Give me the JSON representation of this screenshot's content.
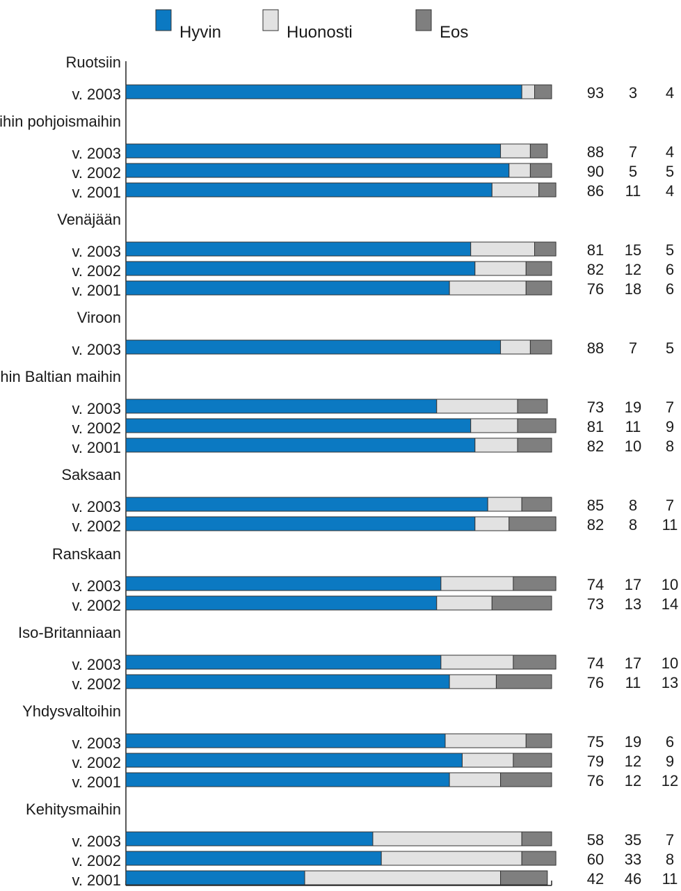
{
  "chart_data": {
    "type": "bar",
    "orientation": "horizontal",
    "stacked": true,
    "xlim": [
      0,
      100
    ],
    "grid": false,
    "legend_position": "top",
    "legend": [
      {
        "name": "Hyvin",
        "color": "#0b79c2"
      },
      {
        "name": "Huonosti",
        "color": "#e2e2e2"
      },
      {
        "name": "Eos",
        "color": "#7f7f7f"
      }
    ],
    "groups": [
      {
        "title": "Ruotsiin",
        "rows": [
          {
            "label": "v. 2003",
            "values": [
              93,
              3,
              4
            ]
          }
        ]
      },
      {
        "title": "Muihin pohjoismaihin",
        "rows": [
          {
            "label": "v. 2003",
            "values": [
              88,
              7,
              4
            ]
          },
          {
            "label": "v. 2002",
            "values": [
              90,
              5,
              5
            ]
          },
          {
            "label": "v. 2001",
            "values": [
              86,
              11,
              4
            ]
          }
        ]
      },
      {
        "title": "Venäjään",
        "rows": [
          {
            "label": "v. 2003",
            "values": [
              81,
              15,
              5
            ]
          },
          {
            "label": "v. 2002",
            "values": [
              82,
              12,
              6
            ]
          },
          {
            "label": "v. 2001",
            "values": [
              76,
              18,
              6
            ]
          }
        ]
      },
      {
        "title": "Viroon",
        "rows": [
          {
            "label": "v. 2003",
            "values": [
              88,
              7,
              5
            ]
          }
        ]
      },
      {
        "title": "Muihin Baltian maihin",
        "rows": [
          {
            "label": "v. 2003",
            "values": [
              73,
              19,
              7
            ]
          },
          {
            "label": "v. 2002",
            "values": [
              81,
              11,
              9
            ]
          },
          {
            "label": "v. 2001",
            "values": [
              82,
              10,
              8
            ]
          }
        ]
      },
      {
        "title": "Saksaan",
        "rows": [
          {
            "label": "v. 2003",
            "values": [
              85,
              8,
              7
            ]
          },
          {
            "label": "v. 2002",
            "values": [
              82,
              8,
              11
            ]
          }
        ]
      },
      {
        "title": "Ranskaan",
        "rows": [
          {
            "label": "v. 2003",
            "values": [
              74,
              17,
              10
            ]
          },
          {
            "label": "v. 2002",
            "values": [
              73,
              13,
              14
            ]
          }
        ]
      },
      {
        "title": "Iso-Britanniaan",
        "rows": [
          {
            "label": "v. 2003",
            "values": [
              74,
              17,
              10
            ]
          },
          {
            "label": "v. 2002",
            "values": [
              76,
              11,
              13
            ]
          }
        ]
      },
      {
        "title": "Yhdysvaltoihin",
        "rows": [
          {
            "label": "v. 2003",
            "values": [
              75,
              19,
              6
            ]
          },
          {
            "label": "v. 2002",
            "values": [
              79,
              12,
              9
            ]
          },
          {
            "label": "v. 2001",
            "values": [
              76,
              12,
              12
            ]
          }
        ]
      },
      {
        "title": "Kehitysmaihin",
        "rows": [
          {
            "label": "v. 2003",
            "values": [
              58,
              35,
              7
            ]
          },
          {
            "label": "v. 2002",
            "values": [
              60,
              33,
              8
            ]
          },
          {
            "label": "v. 2001",
            "values": [
              42,
              46,
              11
            ]
          }
        ]
      }
    ]
  }
}
